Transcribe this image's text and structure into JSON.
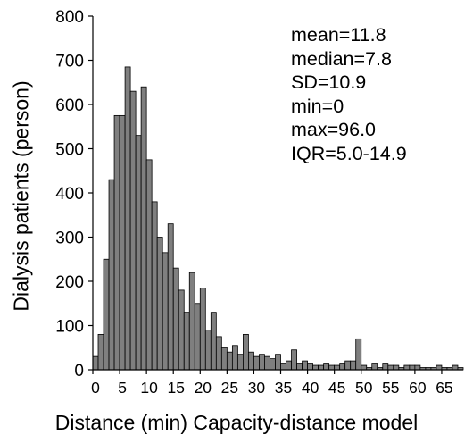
{
  "chart_data": {
    "type": "bar",
    "xlabel": "Distance (min) Capacity-distance model",
    "ylabel": "Dialysis patients (person)",
    "ylim": [
      0,
      800
    ],
    "yticks": [
      0,
      100,
      200,
      300,
      400,
      500,
      600,
      700,
      800
    ],
    "xticks": [
      0,
      5,
      10,
      15,
      20,
      25,
      30,
      35,
      40,
      45,
      50,
      55,
      60,
      65
    ],
    "grid": false,
    "bin_width": 1,
    "bin_start": 0,
    "values": [
      30,
      80,
      250,
      430,
      575,
      575,
      685,
      630,
      530,
      640,
      475,
      380,
      300,
      265,
      330,
      230,
      180,
      130,
      220,
      150,
      185,
      90,
      130,
      75,
      50,
      40,
      55,
      35,
      80,
      40,
      30,
      35,
      30,
      25,
      35,
      15,
      20,
      45,
      15,
      20,
      15,
      10,
      10,
      15,
      10,
      10,
      15,
      20,
      20,
      70,
      10,
      5,
      15,
      5,
      15,
      10,
      10,
      5,
      10,
      10,
      10,
      5,
      5,
      5,
      10,
      5,
      5,
      10,
      5
    ]
  },
  "stats": {
    "mean": "mean=11.8",
    "median": "median=7.8",
    "sd": "SD=10.9",
    "min": "min=0",
    "max": "max=96.0",
    "iqr": "IQR=5.0-14.9"
  }
}
